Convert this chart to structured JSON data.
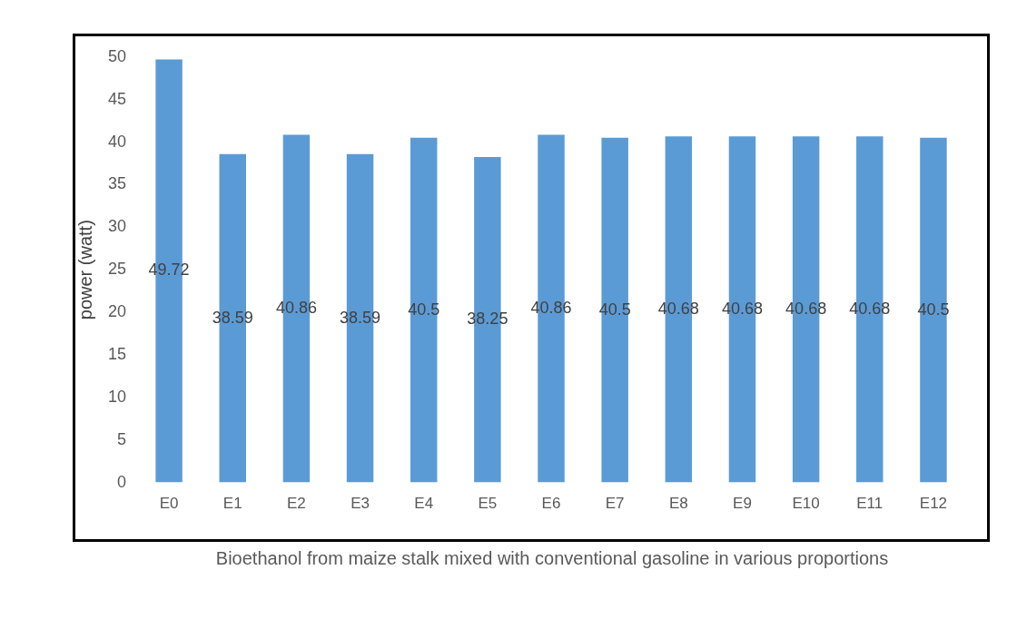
{
  "chart_data": {
    "type": "bar",
    "xlabel": "Bioethanol from maize stalk mixed with conventional gasoline in various proportions",
    "ylabel": "power (watt)",
    "categories": [
      "E0",
      "E1",
      "E2",
      "E3",
      "E4",
      "E5",
      "E6",
      "E7",
      "E8",
      "E9",
      "E10",
      "E11",
      "E12"
    ],
    "values": [
      49.72,
      38.59,
      40.86,
      38.59,
      40.5,
      38.25,
      40.86,
      40.5,
      40.68,
      40.68,
      40.68,
      40.68,
      40.5
    ],
    "color": "#5b9bd5",
    "ylim": [
      0,
      50
    ],
    "yticks": [
      0,
      5,
      10,
      15,
      20,
      25,
      30,
      35,
      40,
      45,
      50
    ],
    "grid": false,
    "legend": false,
    "data_labels": true
  }
}
